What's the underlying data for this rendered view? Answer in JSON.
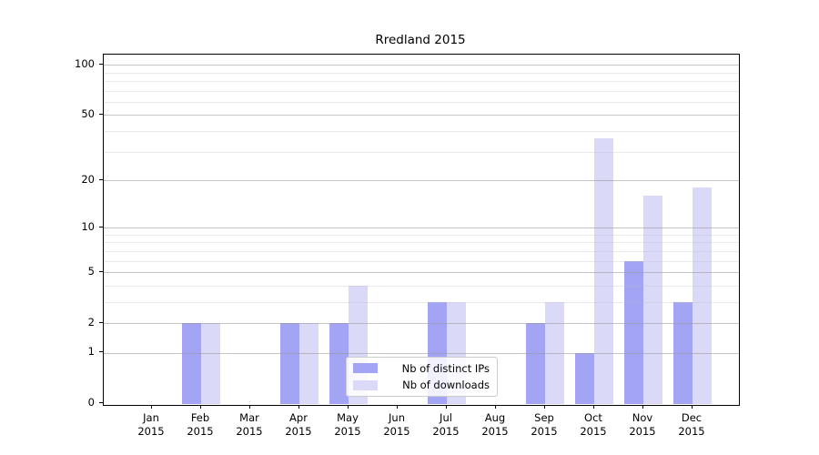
{
  "figure": {
    "title": "Rredland 2015"
  },
  "chart_data": {
    "type": "bar",
    "title": "Rredland 2015",
    "categories": [
      "Jan 2015",
      "Feb 2015",
      "Mar 2015",
      "Apr 2015",
      "May 2015",
      "Jun 2015",
      "Jul 2015",
      "Aug 2015",
      "Sep 2015",
      "Oct 2015",
      "Nov 2015",
      "Dec 2015"
    ],
    "series": [
      {
        "name": "Nb of distinct IPs",
        "color": "#a4a4f4",
        "values": [
          0,
          2,
          0,
          2,
          2,
          0,
          3,
          0,
          2,
          1,
          6,
          3
        ]
      },
      {
        "name": "Nb of downloads",
        "color": "#dadaf8",
        "values": [
          0,
          2,
          0,
          2,
          4,
          0,
          3,
          0,
          3,
          36,
          16,
          18
        ]
      }
    ],
    "xlabel": "",
    "ylabel": "",
    "y_axis": {
      "scale": "log1p",
      "major_ticks": [
        0,
        1,
        2,
        5,
        10,
        20,
        50,
        100
      ],
      "minor_gridlines": [
        3,
        4,
        6,
        7,
        8,
        9,
        30,
        40,
        60,
        70,
        80,
        90
      ],
      "ylim": [
        0,
        115
      ]
    },
    "grid": true,
    "legend": {
      "position": "lower center",
      "entries": [
        "Nb of distinct IPs",
        "Nb of downloads"
      ]
    }
  },
  "colors": {
    "bar_distinct_ips": "#a4a4f4",
    "bar_downloads": "#dadaf8",
    "grid_major": "#969696",
    "grid_minor": "#c3c3c7",
    "spine": "#000000",
    "text": "#000000",
    "legend_border": "#cccccc",
    "background": "#ffffff"
  }
}
